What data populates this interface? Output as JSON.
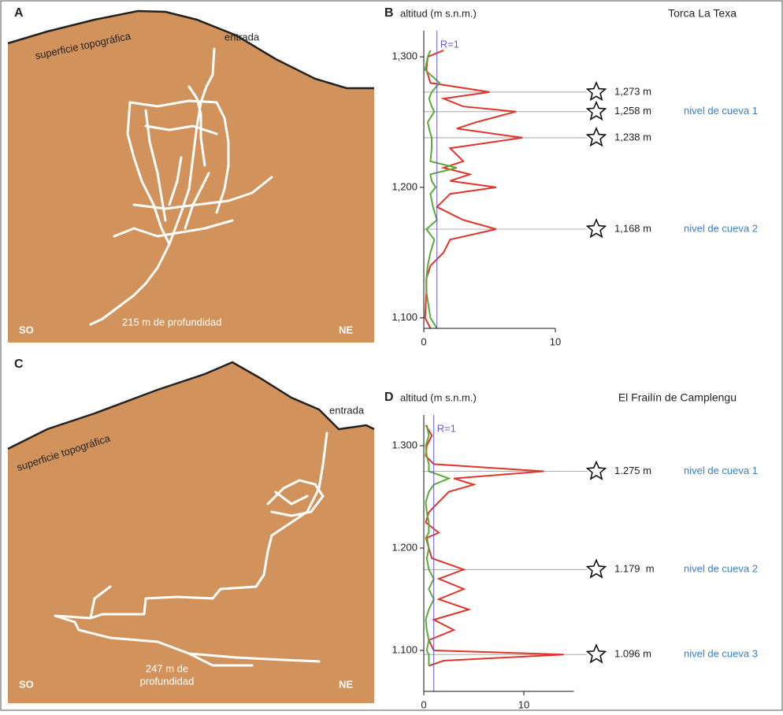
{
  "panels": {
    "a": {
      "letter": "A",
      "surface": "superficie topográfica",
      "entrance": "entrada",
      "left": "SO",
      "right": "NE",
      "depth_lines": [
        "215 m de profundidad"
      ]
    },
    "c": {
      "letter": "C",
      "surface": "superficie topográfica",
      "entrance": "entrada",
      "left": "SO",
      "right": "NE",
      "depth_lines": [
        "247 m de",
        "profundidad"
      ]
    }
  },
  "chart_data": [
    {
      "type": "line",
      "panel": "B",
      "title": "Torca La Texa",
      "y_label": "altitud (m s.n.m.)",
      "y": [
        1305,
        1300,
        1290,
        1280,
        1273,
        1268,
        1262,
        1258,
        1250,
        1245,
        1238,
        1230,
        1220,
        1215,
        1210,
        1205,
        1200,
        1195,
        1185,
        1175,
        1168,
        1160,
        1150,
        1140,
        1130,
        1120,
        1100,
        1092
      ],
      "series": [
        {
          "color": "#e0352b",
          "values": [
            1.5,
            0.3,
            0.2,
            0.5,
            5,
            1.5,
            3,
            7,
            4,
            2.5,
            7.5,
            2,
            3,
            1.5,
            3.5,
            2,
            5.5,
            2,
            1,
            3,
            5.5,
            2,
            1.5,
            0.5,
            0.2,
            0.2,
            0.1,
            0.5
          ]
        },
        {
          "color": "#5aaa3a",
          "values": [
            0.5,
            0.3,
            0.1,
            1.2,
            0.6,
            0.4,
            0.6,
            0.8,
            0.3,
            0.4,
            0.6,
            0.6,
            0.5,
            2.5,
            0.5,
            0.6,
            0.9,
            0.5,
            0.7,
            1,
            0.2,
            0.8,
            0.5,
            0.3,
            0.2,
            0.2,
            0.5,
            1
          ]
        }
      ],
      "reference_line": {
        "value": 1,
        "label": "R=1"
      },
      "xlim": [
        0,
        10
      ],
      "xticks": [
        0,
        10
      ],
      "ylim": [
        1092,
        1320
      ],
      "yticks": [
        {
          "value": 1300,
          "label": "1,300"
        },
        {
          "value": 1200,
          "label": "1,200"
        },
        {
          "value": 1100,
          "label": "1,100"
        }
      ],
      "annotations": [
        {
          "value": 1273,
          "label": "1,273 m"
        },
        {
          "value": 1258,
          "label": "1,258 m",
          "level": "nivel de cueva 1"
        },
        {
          "value": 1238,
          "label": "1,238 m"
        },
        {
          "value": 1168,
          "label": "1,168 m",
          "level": "nivel de cueva 2"
        }
      ]
    },
    {
      "type": "line",
      "panel": "D",
      "title": "El Frailín de Camplengu",
      "y_label": "altitud (m s.n.m.)",
      "y": [
        1320,
        1310,
        1300,
        1290,
        1282,
        1275,
        1268,
        1262,
        1255,
        1245,
        1235,
        1225,
        1215,
        1210,
        1200,
        1190,
        1179,
        1170,
        1160,
        1150,
        1140,
        1130,
        1120,
        1110,
        1100,
        1096,
        1090,
        1085
      ],
      "series": [
        {
          "color": "#e0352b",
          "values": [
            0.2,
            0.8,
            0.3,
            0.2,
            1,
            12,
            3,
            5,
            2.5,
            1.5,
            0.5,
            0.2,
            1.5,
            0.3,
            0.5,
            0.8,
            4,
            1.5,
            4,
            1.5,
            4.5,
            1,
            3,
            0.5,
            1,
            14,
            2,
            0.5
          ]
        },
        {
          "color": "#5aaa3a",
          "values": [
            0.3,
            0.5,
            0.2,
            0.3,
            0.5,
            0.5,
            2.5,
            1,
            0.5,
            0.2,
            0.3,
            0.5,
            0.5,
            0.2,
            0.5,
            0.3,
            0.5,
            1,
            0.5,
            1,
            0.5,
            0.2,
            0.3,
            0.5,
            0.3,
            0.5,
            0.5,
            0.5
          ]
        }
      ],
      "reference_line": {
        "value": 1,
        "label": "R=1"
      },
      "xlim": [
        0,
        15
      ],
      "xticks": [
        0,
        10
      ],
      "ylim": [
        1060,
        1330
      ],
      "yticks": [
        {
          "value": 1300,
          "label": "1.300"
        },
        {
          "value": 1200,
          "label": "1.200"
        },
        {
          "value": 1100,
          "label": "1.100"
        }
      ],
      "annotations": [
        {
          "value": 1275,
          "label": "1.275 m",
          "level": "nivel de cueva 1"
        },
        {
          "value": 1179,
          "label": "1.179  m",
          "level": "nivel de cueva 2"
        },
        {
          "value": 1096,
          "label": "1.096 m",
          "level": "nivel de cueva 3"
        }
      ]
    }
  ]
}
